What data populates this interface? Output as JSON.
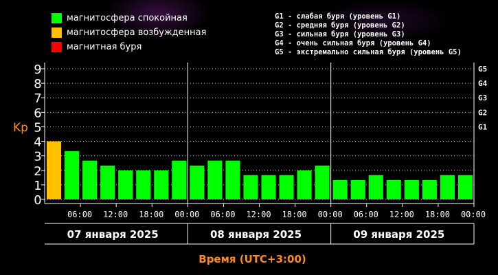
{
  "legend": {
    "items": [
      {
        "label": "магнитосфера спокойная",
        "color": "#00ff00"
      },
      {
        "label": "магнитосфера возбужденная",
        "color": "#ffc000"
      },
      {
        "label": "магнитная буря",
        "color": "#ff0000"
      }
    ]
  },
  "storm_levels": [
    "G1 - слабая буря (уровень G1)",
    "G2 - средняя буря (уровень G2)",
    "G3 - сильная буря (уровень G3)",
    "G4 - очень сильная буря (уровень G4)",
    "G5 - экстремально сильная буря (уровень G5)"
  ],
  "colors": {
    "quiet": "#00ff00",
    "active": "#ffc000",
    "storm": "#ff0000",
    "axis_label": "#ff8c1a"
  },
  "chart_data": {
    "type": "bar",
    "ylabel": "Kp",
    "xlabel": "Время (UTC+3:00)",
    "ylim": [
      0,
      9
    ],
    "yticks": [
      "0",
      "1",
      "2",
      "3",
      "4",
      "5",
      "6",
      "7",
      "8",
      "9"
    ],
    "g_levels": [
      {
        "label": "G1",
        "kp": 5
      },
      {
        "label": "G2",
        "kp": 6
      },
      {
        "label": "G3",
        "kp": 7
      },
      {
        "label": "G4",
        "kp": 8
      },
      {
        "label": "G5",
        "kp": 9
      }
    ],
    "days": [
      "07 января 2025",
      "08 января 2025",
      "09 января 2025"
    ],
    "time_ticks": [
      "06:00",
      "12:00",
      "18:00",
      "00:00",
      "06:00",
      "12:00",
      "18:00",
      "00:00",
      "06:00",
      "12:00",
      "18:00",
      "00:00"
    ],
    "values": [
      4.0,
      3.33,
      2.67,
      2.33,
      2.0,
      2.0,
      2.0,
      2.67,
      2.33,
      2.67,
      2.67,
      1.67,
      1.67,
      1.67,
      2.0,
      2.33,
      1.33,
      1.33,
      1.67,
      1.33,
      1.33,
      1.33,
      1.67,
      1.67
    ],
    "grid": true
  }
}
